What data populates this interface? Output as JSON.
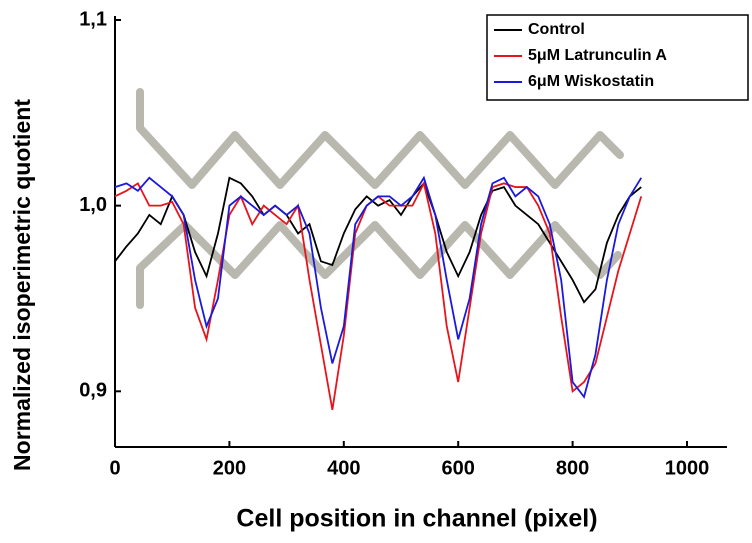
{
  "chart_data": {
    "type": "line",
    "xlabel": "Cell position in channel (pixel)",
    "ylabel": "Normalized isoperimetric quotient",
    "x": [
      0,
      20,
      40,
      60,
      80,
      100,
      120,
      140,
      160,
      180,
      200,
      220,
      240,
      260,
      280,
      300,
      320,
      340,
      360,
      380,
      400,
      420,
      440,
      460,
      480,
      500,
      520,
      540,
      560,
      580,
      600,
      620,
      640,
      660,
      680,
      700,
      720,
      740,
      760,
      780,
      800,
      820,
      840,
      860,
      880,
      900,
      920
    ],
    "series": [
      {
        "name": "Control",
        "color": "#000000",
        "values": [
          0.97,
          0.978,
          0.985,
          0.995,
          0.99,
          1.005,
          0.995,
          0.975,
          0.962,
          0.985,
          1.015,
          1.012,
          1.005,
          0.995,
          1.0,
          0.995,
          0.985,
          0.99,
          0.97,
          0.968,
          0.985,
          0.998,
          1.005,
          1.0,
          1.003,
          0.995,
          1.005,
          1.012,
          0.995,
          0.975,
          0.962,
          0.975,
          0.995,
          1.008,
          1.01,
          1.0,
          0.995,
          0.99,
          0.98,
          0.97,
          0.96,
          0.948,
          0.955,
          0.98,
          0.995,
          1.005,
          1.01
        ]
      },
      {
        "name": "5μM Latrunculin A",
        "color": "#e8141c",
        "values": [
          1.005,
          1.008,
          1.012,
          1.0,
          1.0,
          1.002,
          0.99,
          0.945,
          0.928,
          0.96,
          0.995,
          1.005,
          0.99,
          1.0,
          0.995,
          0.99,
          1.0,
          0.96,
          0.925,
          0.89,
          0.93,
          0.985,
          1.0,
          1.005,
          1.0,
          1.0,
          1.0,
          1.012,
          0.985,
          0.935,
          0.905,
          0.945,
          0.985,
          1.01,
          1.012,
          1.01,
          1.01,
          1.0,
          0.985,
          0.94,
          0.9,
          0.905,
          0.915,
          0.94,
          0.965,
          0.985,
          1.005
        ]
      },
      {
        "name": "6μM Wiskostatin",
        "color": "#1a1adc",
        "values": [
          1.01,
          1.012,
          1.008,
          1.015,
          1.01,
          1.005,
          0.995,
          0.96,
          0.935,
          0.95,
          1.0,
          1.005,
          1.0,
          0.995,
          1.0,
          0.995,
          1.0,
          0.985,
          0.945,
          0.915,
          0.935,
          0.99,
          1.0,
          1.005,
          1.005,
          1.0,
          1.005,
          1.015,
          0.995,
          0.96,
          0.928,
          0.95,
          0.99,
          1.012,
          1.015,
          1.005,
          1.01,
          1.005,
          0.99,
          0.96,
          0.905,
          0.897,
          0.92,
          0.96,
          0.99,
          1.005,
          1.015
        ]
      }
    ],
    "xlim": [
      0,
      1000
    ],
    "xticks": [
      0,
      200,
      400,
      600,
      800,
      1000
    ],
    "ylim": [
      0.87,
      1.1
    ],
    "yticks": [
      {
        "value": 0.9,
        "label": "0,9"
      },
      {
        "value": 1.0,
        "label": "1,0"
      },
      {
        "value": 1.1,
        "label": "1,1"
      }
    ],
    "legend": "upper right"
  }
}
